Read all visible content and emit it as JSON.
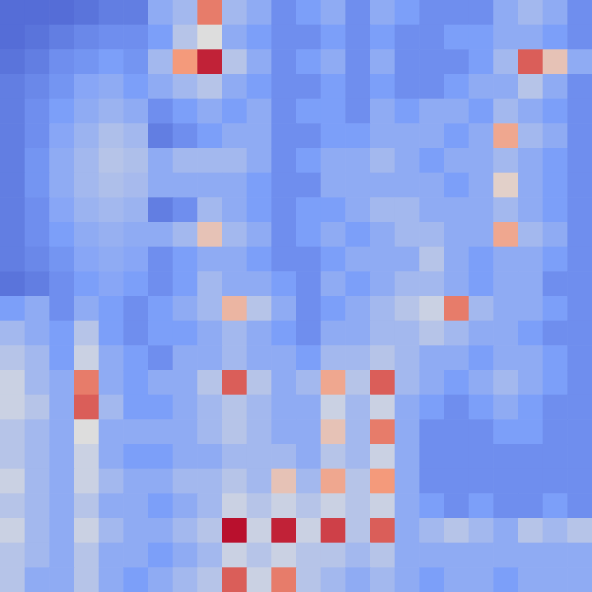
{
  "chart_data": {
    "type": "heatmap",
    "tick_labels": false,
    "xlim": [
      0,
      24
    ],
    "ylim": [
      0,
      24
    ],
    "zlim": [
      0,
      1
    ],
    "cells": [
      [
        0.1,
        0.1,
        0.1,
        0.12,
        0.15,
        0.15,
        0.3,
        0.35,
        0.8,
        0.35,
        0.3,
        0.2,
        0.25,
        0.3,
        0.2,
        0.3,
        0.25,
        0.2,
        0.2,
        0.2,
        0.3,
        0.35,
        0.3,
        0.2
      ],
      [
        0.1,
        0.12,
        0.15,
        0.18,
        0.2,
        0.2,
        0.25,
        0.4,
        0.5,
        0.3,
        0.25,
        0.2,
        0.2,
        0.25,
        0.2,
        0.25,
        0.2,
        0.2,
        0.25,
        0.25,
        0.3,
        0.3,
        0.25,
        0.2
      ],
      [
        0.12,
        0.15,
        0.2,
        0.22,
        0.25,
        0.22,
        0.35,
        0.75,
        0.95,
        0.4,
        0.3,
        0.2,
        0.25,
        0.3,
        0.2,
        0.3,
        0.2,
        0.2,
        0.2,
        0.25,
        0.35,
        0.85,
        0.6,
        0.3
      ],
      [
        0.15,
        0.18,
        0.22,
        0.28,
        0.3,
        0.25,
        0.3,
        0.35,
        0.4,
        0.3,
        0.25,
        0.2,
        0.2,
        0.25,
        0.2,
        0.25,
        0.2,
        0.2,
        0.25,
        0.3,
        0.3,
        0.4,
        0.3,
        0.2
      ],
      [
        0.15,
        0.2,
        0.25,
        0.3,
        0.33,
        0.3,
        0.2,
        0.25,
        0.3,
        0.25,
        0.3,
        0.2,
        0.25,
        0.25,
        0.2,
        0.3,
        0.25,
        0.3,
        0.3,
        0.25,
        0.35,
        0.3,
        0.25,
        0.2
      ],
      [
        0.15,
        0.2,
        0.28,
        0.33,
        0.38,
        0.35,
        0.15,
        0.2,
        0.25,
        0.3,
        0.3,
        0.2,
        0.2,
        0.25,
        0.25,
        0.3,
        0.3,
        0.3,
        0.25,
        0.3,
        0.7,
        0.35,
        0.3,
        0.2
      ],
      [
        0.15,
        0.22,
        0.3,
        0.35,
        0.4,
        0.38,
        0.3,
        0.35,
        0.35,
        0.35,
        0.3,
        0.2,
        0.25,
        0.3,
        0.3,
        0.35,
        0.3,
        0.25,
        0.3,
        0.3,
        0.35,
        0.3,
        0.25,
        0.2
      ],
      [
        0.15,
        0.22,
        0.3,
        0.35,
        0.38,
        0.36,
        0.3,
        0.3,
        0.3,
        0.3,
        0.25,
        0.2,
        0.2,
        0.3,
        0.3,
        0.3,
        0.3,
        0.3,
        0.25,
        0.3,
        0.55,
        0.3,
        0.25,
        0.2
      ],
      [
        0.15,
        0.2,
        0.28,
        0.33,
        0.35,
        0.33,
        0.15,
        0.2,
        0.35,
        0.3,
        0.25,
        0.2,
        0.25,
        0.25,
        0.3,
        0.35,
        0.35,
        0.3,
        0.3,
        0.3,
        0.35,
        0.3,
        0.25,
        0.2
      ],
      [
        0.15,
        0.2,
        0.25,
        0.3,
        0.32,
        0.3,
        0.3,
        0.35,
        0.6,
        0.35,
        0.3,
        0.2,
        0.25,
        0.3,
        0.25,
        0.3,
        0.35,
        0.35,
        0.3,
        0.3,
        0.7,
        0.35,
        0.3,
        0.2
      ],
      [
        0.15,
        0.18,
        0.22,
        0.28,
        0.3,
        0.28,
        0.2,
        0.25,
        0.3,
        0.3,
        0.25,
        0.2,
        0.2,
        0.25,
        0.3,
        0.3,
        0.3,
        0.4,
        0.3,
        0.25,
        0.3,
        0.3,
        0.25,
        0.2
      ],
      [
        0.12,
        0.15,
        0.2,
        0.25,
        0.28,
        0.25,
        0.2,
        0.25,
        0.35,
        0.3,
        0.3,
        0.25,
        0.2,
        0.3,
        0.25,
        0.3,
        0.35,
        0.35,
        0.3,
        0.25,
        0.3,
        0.3,
        0.2,
        0.2
      ],
      [
        0.25,
        0.3,
        0.2,
        0.3,
        0.25,
        0.2,
        0.25,
        0.3,
        0.35,
        0.65,
        0.4,
        0.3,
        0.2,
        0.25,
        0.3,
        0.35,
        0.4,
        0.45,
        0.8,
        0.35,
        0.3,
        0.3,
        0.25,
        0.2
      ],
      [
        0.35,
        0.3,
        0.25,
        0.4,
        0.25,
        0.2,
        0.25,
        0.25,
        0.3,
        0.35,
        0.3,
        0.25,
        0.2,
        0.3,
        0.3,
        0.35,
        0.35,
        0.4,
        0.35,
        0.3,
        0.3,
        0.25,
        0.2,
        0.2
      ],
      [
        0.4,
        0.35,
        0.25,
        0.45,
        0.3,
        0.25,
        0.2,
        0.3,
        0.3,
        0.35,
        0.3,
        0.3,
        0.25,
        0.35,
        0.35,
        0.4,
        0.35,
        0.3,
        0.3,
        0.25,
        0.3,
        0.3,
        0.25,
        0.2
      ],
      [
        0.45,
        0.35,
        0.3,
        0.8,
        0.3,
        0.25,
        0.3,
        0.3,
        0.4,
        0.85,
        0.4,
        0.3,
        0.35,
        0.7,
        0.4,
        0.85,
        0.35,
        0.3,
        0.25,
        0.3,
        0.35,
        0.3,
        0.25,
        0.2
      ],
      [
        0.45,
        0.4,
        0.3,
        0.85,
        0.35,
        0.25,
        0.25,
        0.3,
        0.35,
        0.4,
        0.35,
        0.3,
        0.3,
        0.45,
        0.35,
        0.45,
        0.3,
        0.25,
        0.2,
        0.25,
        0.3,
        0.25,
        0.2,
        0.2
      ],
      [
        0.4,
        0.35,
        0.3,
        0.5,
        0.3,
        0.3,
        0.3,
        0.3,
        0.35,
        0.4,
        0.35,
        0.3,
        0.3,
        0.6,
        0.35,
        0.8,
        0.3,
        0.2,
        0.2,
        0.2,
        0.25,
        0.25,
        0.2,
        0.2
      ],
      [
        0.4,
        0.35,
        0.3,
        0.45,
        0.3,
        0.25,
        0.25,
        0.3,
        0.3,
        0.35,
        0.35,
        0.35,
        0.3,
        0.4,
        0.35,
        0.45,
        0.3,
        0.2,
        0.2,
        0.2,
        0.2,
        0.2,
        0.2,
        0.2
      ],
      [
        0.45,
        0.35,
        0.3,
        0.45,
        0.35,
        0.3,
        0.3,
        0.35,
        0.35,
        0.4,
        0.35,
        0.6,
        0.35,
        0.7,
        0.4,
        0.75,
        0.3,
        0.2,
        0.2,
        0.2,
        0.2,
        0.2,
        0.2,
        0.2
      ],
      [
        0.4,
        0.35,
        0.3,
        0.4,
        0.3,
        0.3,
        0.25,
        0.3,
        0.35,
        0.45,
        0.4,
        0.45,
        0.4,
        0.45,
        0.4,
        0.45,
        0.3,
        0.25,
        0.2,
        0.25,
        0.2,
        0.2,
        0.25,
        0.2
      ],
      [
        0.45,
        0.35,
        0.3,
        0.45,
        0.35,
        0.3,
        0.3,
        0.35,
        0.4,
        0.98,
        0.45,
        0.95,
        0.45,
        0.9,
        0.4,
        0.85,
        0.3,
        0.35,
        0.4,
        0.35,
        0.3,
        0.4,
        0.35,
        0.4
      ],
      [
        0.4,
        0.35,
        0.3,
        0.4,
        0.3,
        0.3,
        0.25,
        0.3,
        0.35,
        0.45,
        0.4,
        0.45,
        0.4,
        0.4,
        0.35,
        0.4,
        0.3,
        0.3,
        0.3,
        0.3,
        0.3,
        0.3,
        0.3,
        0.3
      ],
      [
        0.4,
        0.3,
        0.3,
        0.4,
        0.3,
        0.25,
        0.3,
        0.35,
        0.4,
        0.85,
        0.45,
        0.8,
        0.4,
        0.35,
        0.3,
        0.35,
        0.3,
        0.25,
        0.3,
        0.3,
        0.25,
        0.3,
        0.3,
        0.3
      ]
    ]
  }
}
